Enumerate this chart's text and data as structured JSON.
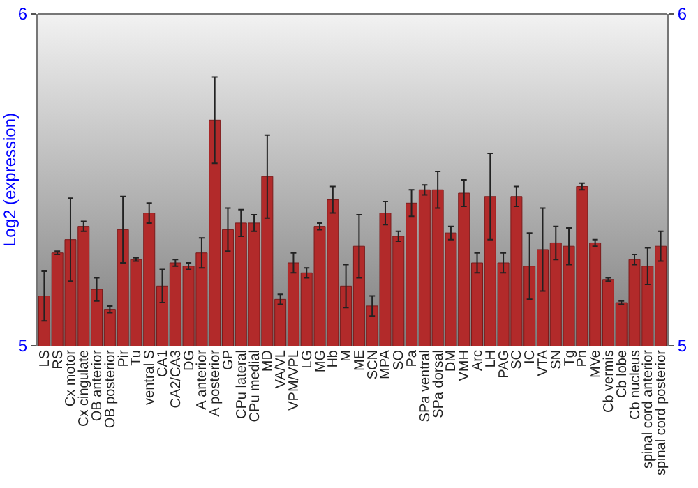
{
  "chart_data": {
    "type": "bar",
    "ylabel": "Log2 (expression)",
    "categories": [
      "LS",
      "RS",
      "Cx motor",
      "Cx cingulate",
      "OB anterior",
      "OB posterior",
      "Pir",
      "Tu",
      "ventral S",
      "CA1",
      "CA2/CA3",
      "DG",
      "A anterior",
      "A posterior",
      "GP",
      "CPu lateral",
      "CPu medial",
      "MD",
      "VA/VL",
      "VPM/VPL",
      "LG",
      "MG",
      "Hb",
      "M",
      "ME",
      "SCN",
      "MPA",
      "SO",
      "Pa",
      "SPa ventral",
      "SPa dorsal",
      "DM",
      "VMH",
      "Arc",
      "LH",
      "PAG",
      "SC",
      "IC",
      "VTA",
      "SN",
      "Tg",
      "Pn",
      "MVe",
      "Cb vermis",
      "Cb lobe",
      "Cb nucleus",
      "spinal cord anterior",
      "spinal cord posterior"
    ],
    "values": [
      5.15,
      5.28,
      5.32,
      5.36,
      5.17,
      5.11,
      5.35,
      5.26,
      5.4,
      5.18,
      5.25,
      5.24,
      5.28,
      5.68,
      5.35,
      5.37,
      5.37,
      5.51,
      5.14,
      5.25,
      5.22,
      5.36,
      5.44,
      5.18,
      5.3,
      5.12,
      5.4,
      5.33,
      5.43,
      5.47,
      5.47,
      5.34,
      5.46,
      5.25,
      5.45,
      5.25,
      5.45,
      5.24,
      5.29,
      5.31,
      5.3,
      5.48,
      5.31,
      5.2,
      5.13,
      5.26,
      5.24,
      5.3
    ],
    "errors": [
      0.075,
      0.005,
      0.125,
      0.015,
      0.035,
      0.01,
      0.1,
      0.005,
      0.03,
      0.05,
      0.01,
      0.01,
      0.045,
      0.13,
      0.065,
      0.04,
      0.025,
      0.125,
      0.015,
      0.03,
      0.015,
      0.01,
      0.04,
      0.065,
      0.095,
      0.03,
      0.035,
      0.015,
      0.04,
      0.015,
      0.055,
      0.02,
      0.04,
      0.03,
      0.13,
      0.03,
      0.03,
      0.1,
      0.125,
      0.05,
      0.055,
      0.01,
      0.01,
      0.005,
      0.005,
      0.015,
      0.055,
      0.045
    ],
    "color": "#b22a2a",
    "ylim": [
      5,
      6
    ],
    "yticks": [
      5,
      6
    ],
    "y2lim": [
      5,
      6
    ],
    "y2ticks": [
      5,
      6
    ]
  }
}
